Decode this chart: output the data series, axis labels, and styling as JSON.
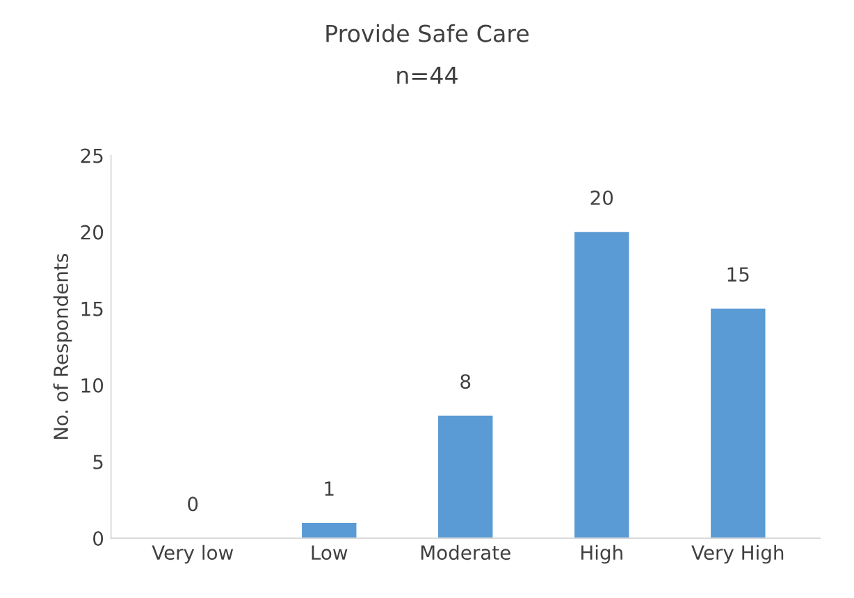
{
  "chart_data": {
    "type": "bar",
    "title": "Provide Safe Care",
    "subtitle": "n=44",
    "ylabel": "No. of Respondents",
    "categories": [
      "Very low",
      "Low",
      "Moderate",
      "High",
      "Very High"
    ],
    "values": [
      0,
      1,
      8,
      20,
      15
    ],
    "color": "#5b9bd5",
    "ylim": [
      0,
      25
    ],
    "yticks": [
      0,
      5,
      10,
      15,
      20,
      25
    ],
    "grid": false,
    "data_labels": true
  }
}
